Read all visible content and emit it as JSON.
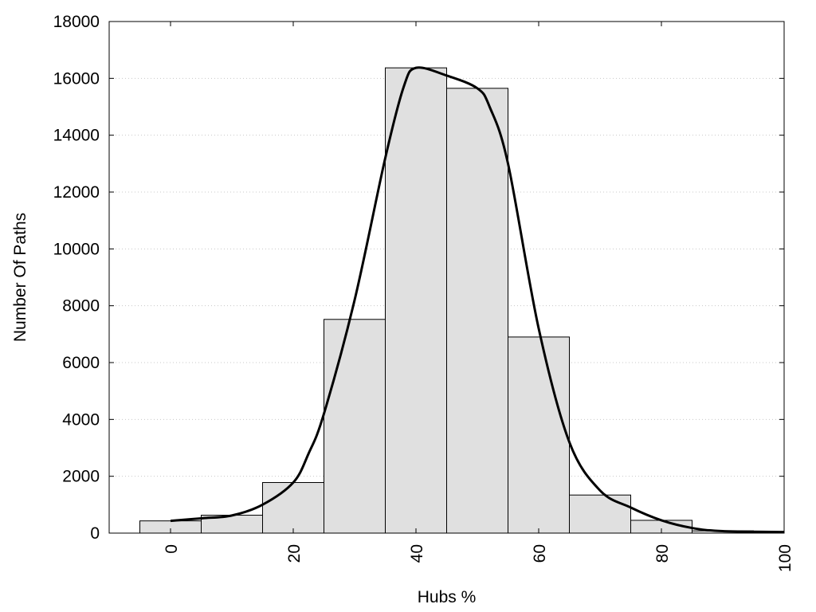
{
  "chart_data": {
    "type": "bar",
    "xlabel": "Hubs %",
    "ylabel": "Number Of Paths",
    "xlim": [
      -10,
      100
    ],
    "ylim": [
      0,
      18000
    ],
    "x_ticks": [
      0,
      20,
      40,
      60,
      80,
      100
    ],
    "y_ticks": [
      0,
      2000,
      4000,
      6000,
      8000,
      10000,
      12000,
      14000,
      16000,
      18000
    ],
    "grid": true,
    "bar_width": 10,
    "bars": [
      {
        "x": 0,
        "value": 430
      },
      {
        "x": 10,
        "value": 630
      },
      {
        "x": 20,
        "value": 1780
      },
      {
        "x": 30,
        "value": 7520
      },
      {
        "x": 40,
        "value": 16370
      },
      {
        "x": 50,
        "value": 15650
      },
      {
        "x": 60,
        "value": 6900
      },
      {
        "x": 70,
        "value": 1340
      },
      {
        "x": 80,
        "value": 450
      },
      {
        "x": 90,
        "value": 80
      }
    ],
    "curve": [
      {
        "x": 0,
        "y": 430
      },
      {
        "x": 5,
        "y": 520
      },
      {
        "x": 10,
        "y": 620
      },
      {
        "x": 15,
        "y": 1000
      },
      {
        "x": 20,
        "y": 1780
      },
      {
        "x": 22.5,
        "y": 2800
      },
      {
        "x": 25,
        "y": 4200
      },
      {
        "x": 30,
        "y": 8200
      },
      {
        "x": 35,
        "y": 13200
      },
      {
        "x": 38,
        "y": 15700
      },
      {
        "x": 40,
        "y": 16370
      },
      {
        "x": 45,
        "y": 16100
      },
      {
        "x": 50,
        "y": 15650
      },
      {
        "x": 52,
        "y": 15000
      },
      {
        "x": 55,
        "y": 13000
      },
      {
        "x": 60,
        "y": 7200
      },
      {
        "x": 65,
        "y": 3200
      },
      {
        "x": 70,
        "y": 1500
      },
      {
        "x": 75,
        "y": 900
      },
      {
        "x": 80,
        "y": 450
      },
      {
        "x": 85,
        "y": 180
      },
      {
        "x": 90,
        "y": 70
      },
      {
        "x": 100,
        "y": 40
      }
    ]
  }
}
